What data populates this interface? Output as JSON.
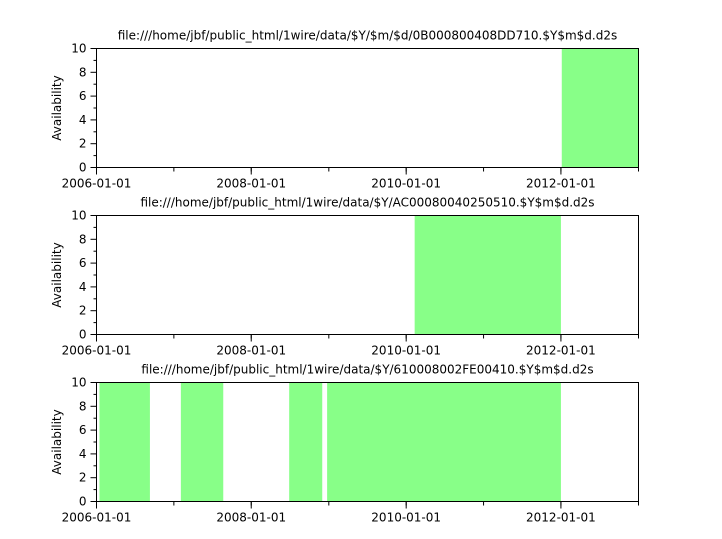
{
  "chart_data": [
    {
      "type": "bar",
      "title": "file:///home/jbf/public_html/1wire/data/$Y/$m/$d/0B000800408DD710.$Y$m$d.d2s",
      "xlabel": "",
      "ylabel": "Availability",
      "xlim": [
        "2006-01-01",
        "2013-01-01"
      ],
      "ylim": [
        0,
        10
      ],
      "xticks": [
        "2006-01-01",
        "2008-01-01",
        "2010-01-01",
        "2012-01-01"
      ],
      "yticks": [
        "0",
        "2",
        "4",
        "6",
        "8",
        "10"
      ],
      "segments": [
        {
          "start": "2012-01-05",
          "end": "2013-01-01",
          "value": 10
        }
      ]
    },
    {
      "type": "bar",
      "title": "file:///home/jbf/public_html/1wire/data/$Y/AC00080040250510.$Y$m$d.d2s",
      "xlabel": "",
      "ylabel": "Availability",
      "xlim": [
        "2006-01-01",
        "2013-01-01"
      ],
      "ylim": [
        0,
        10
      ],
      "xticks": [
        "2006-01-01",
        "2008-01-01",
        "2010-01-01",
        "2012-01-01"
      ],
      "yticks": [
        "0",
        "2",
        "4",
        "6",
        "8",
        "10"
      ],
      "segments": [
        {
          "start": "2010-02-10",
          "end": "2012-01-01",
          "value": 10
        }
      ]
    },
    {
      "type": "bar",
      "title": "file:///home/jbf/public_html/1wire/data/$Y/610008002FE00410.$Y$m$d.d2s",
      "xlabel": "",
      "ylabel": "Availability",
      "xlim": [
        "2006-01-01",
        "2013-01-01"
      ],
      "ylim": [
        0,
        10
      ],
      "xticks": [
        "2006-01-01",
        "2008-01-01",
        "2010-01-01",
        "2012-01-01"
      ],
      "yticks": [
        "0",
        "2",
        "4",
        "6",
        "8",
        "10"
      ],
      "segments": [
        {
          "start": "2006-01-15",
          "end": "2006-09-10",
          "value": 10
        },
        {
          "start": "2007-02-03",
          "end": "2007-08-22",
          "value": 10
        },
        {
          "start": "2008-06-28",
          "end": "2008-12-01",
          "value": 10
        },
        {
          "start": "2008-12-24",
          "end": "2012-01-01",
          "value": 10
        }
      ]
    }
  ],
  "colors": {
    "fill": "#88ff88",
    "axis": "#000000"
  }
}
